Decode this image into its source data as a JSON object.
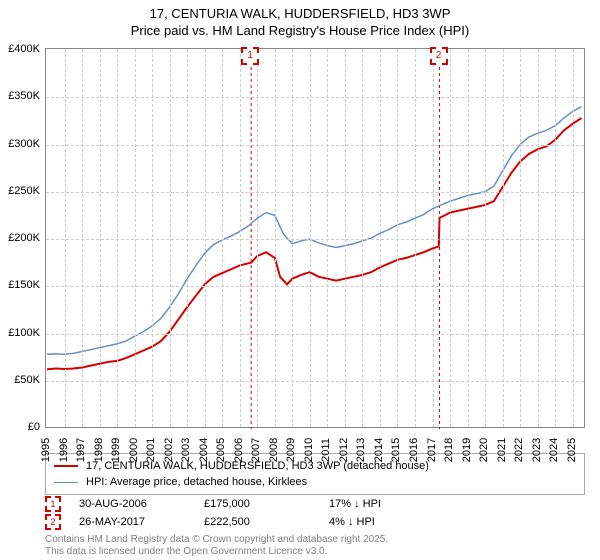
{
  "title_line1": "17, CENTURIA WALK, HUDDERSFIELD, HD3 3WP",
  "title_line2": "Price paid vs. HM Land Registry's House Price Index (HPI)",
  "chart": {
    "type": "line",
    "background_color": "#ffffff",
    "grid_color": "#cccccc",
    "border_color": "#888888",
    "x_domain": [
      1995,
      2025.7
    ],
    "y_domain": [
      0,
      400000
    ],
    "y_ticks": [
      0,
      50000,
      100000,
      150000,
      200000,
      250000,
      300000,
      350000,
      400000
    ],
    "y_tick_labels": [
      "£0",
      "£50K",
      "£100K",
      "£150K",
      "£200K",
      "£250K",
      "£300K",
      "£350K",
      "£400K"
    ],
    "x_ticks": [
      1995,
      1996,
      1997,
      1998,
      1999,
      2000,
      2001,
      2002,
      2003,
      2004,
      2005,
      2006,
      2007,
      2008,
      2009,
      2010,
      2011,
      2012,
      2013,
      2014,
      2015,
      2016,
      2017,
      2018,
      2019,
      2020,
      2021,
      2022,
      2023,
      2024,
      2025
    ],
    "series": [
      {
        "name": "price_paid",
        "label": "17, CENTURIA WALK, HUDDERSFIELD, HD3 3WP (detached house)",
        "color": "#d40000",
        "line_width": 2,
        "data": [
          [
            1995,
            62000
          ],
          [
            1995.5,
            63000
          ],
          [
            1996,
            62500
          ],
          [
            1996.5,
            63000
          ],
          [
            1997,
            64000
          ],
          [
            1997.5,
            66000
          ],
          [
            1998,
            68000
          ],
          [
            1998.5,
            70000
          ],
          [
            1999,
            71000
          ],
          [
            1999.5,
            74000
          ],
          [
            2000,
            78000
          ],
          [
            2000.5,
            82000
          ],
          [
            2001,
            86000
          ],
          [
            2001.5,
            92000
          ],
          [
            2002,
            102000
          ],
          [
            2002.5,
            115000
          ],
          [
            2003,
            128000
          ],
          [
            2003.5,
            140000
          ],
          [
            2004,
            152000
          ],
          [
            2004.5,
            160000
          ],
          [
            2005,
            164000
          ],
          [
            2005.5,
            168000
          ],
          [
            2006,
            172000
          ],
          [
            2006.65,
            175000
          ],
          [
            2007,
            182000
          ],
          [
            2007.5,
            186000
          ],
          [
            2008,
            180000
          ],
          [
            2008.3,
            160000
          ],
          [
            2008.7,
            152000
          ],
          [
            2009,
            158000
          ],
          [
            2009.5,
            162000
          ],
          [
            2010,
            165000
          ],
          [
            2010.5,
            160000
          ],
          [
            2011,
            158000
          ],
          [
            2011.5,
            156000
          ],
          [
            2012,
            158000
          ],
          [
            2012.5,
            160000
          ],
          [
            2013,
            162000
          ],
          [
            2013.5,
            165000
          ],
          [
            2014,
            170000
          ],
          [
            2014.5,
            174000
          ],
          [
            2015,
            178000
          ],
          [
            2015.5,
            180000
          ],
          [
            2016,
            183000
          ],
          [
            2016.5,
            186000
          ],
          [
            2017,
            190000
          ],
          [
            2017.35,
            192000
          ],
          [
            2017.4,
            222500
          ],
          [
            2017.7,
            225000
          ],
          [
            2018,
            228000
          ],
          [
            2018.5,
            230000
          ],
          [
            2019,
            232000
          ],
          [
            2019.5,
            234000
          ],
          [
            2020,
            236000
          ],
          [
            2020.5,
            240000
          ],
          [
            2021,
            255000
          ],
          [
            2021.5,
            270000
          ],
          [
            2022,
            282000
          ],
          [
            2022.5,
            290000
          ],
          [
            2023,
            295000
          ],
          [
            2023.5,
            298000
          ],
          [
            2024,
            305000
          ],
          [
            2024.5,
            315000
          ],
          [
            2025,
            322000
          ],
          [
            2025.5,
            328000
          ]
        ]
      },
      {
        "name": "hpi",
        "label": "HPI: Average price, detached house, Kirklees",
        "color": "#6a8fc4",
        "line_width": 1.5,
        "data": [
          [
            1995,
            78000
          ],
          [
            1995.5,
            78500
          ],
          [
            1996,
            78000
          ],
          [
            1996.5,
            79000
          ],
          [
            1997,
            81000
          ],
          [
            1997.5,
            83000
          ],
          [
            1998,
            85000
          ],
          [
            1998.5,
            87000
          ],
          [
            1999,
            89000
          ],
          [
            1999.5,
            92000
          ],
          [
            2000,
            97000
          ],
          [
            2000.5,
            102000
          ],
          [
            2001,
            108000
          ],
          [
            2001.5,
            116000
          ],
          [
            2002,
            128000
          ],
          [
            2002.5,
            142000
          ],
          [
            2003,
            158000
          ],
          [
            2003.5,
            172000
          ],
          [
            2004,
            185000
          ],
          [
            2004.5,
            194000
          ],
          [
            2005,
            199000
          ],
          [
            2005.5,
            203000
          ],
          [
            2006,
            208000
          ],
          [
            2006.5,
            214000
          ],
          [
            2007,
            222000
          ],
          [
            2007.5,
            228000
          ],
          [
            2008,
            225000
          ],
          [
            2008.5,
            205000
          ],
          [
            2009,
            195000
          ],
          [
            2009.5,
            198000
          ],
          [
            2010,
            200000
          ],
          [
            2010.5,
            196000
          ],
          [
            2011,
            193000
          ],
          [
            2011.5,
            191000
          ],
          [
            2012,
            193000
          ],
          [
            2012.5,
            195000
          ],
          [
            2013,
            198000
          ],
          [
            2013.5,
            201000
          ],
          [
            2014,
            206000
          ],
          [
            2014.5,
            210000
          ],
          [
            2015,
            215000
          ],
          [
            2015.5,
            218000
          ],
          [
            2016,
            222000
          ],
          [
            2016.5,
            226000
          ],
          [
            2017,
            232000
          ],
          [
            2017.5,
            236000
          ],
          [
            2018,
            240000
          ],
          [
            2018.5,
            243000
          ],
          [
            2019,
            246000
          ],
          [
            2019.5,
            248000
          ],
          [
            2020,
            250000
          ],
          [
            2020.5,
            256000
          ],
          [
            2021,
            272000
          ],
          [
            2021.5,
            288000
          ],
          [
            2022,
            300000
          ],
          [
            2022.5,
            308000
          ],
          [
            2023,
            312000
          ],
          [
            2023.5,
            315000
          ],
          [
            2024,
            320000
          ],
          [
            2024.5,
            328000
          ],
          [
            2025,
            335000
          ],
          [
            2025.5,
            340000
          ]
        ]
      }
    ],
    "markers": [
      {
        "id": "1",
        "x": 2006.65,
        "color": "#d40000"
      },
      {
        "id": "2",
        "x": 2017.4,
        "color": "#d40000"
      }
    ]
  },
  "legend": {
    "items": [
      {
        "color": "#d40000",
        "width": 2,
        "label": "17, CENTURIA WALK, HUDDERSFIELD, HD3 3WP (detached house)"
      },
      {
        "color": "#6a8fc4",
        "width": 1.5,
        "label": "HPI: Average price, detached house, Kirklees"
      }
    ]
  },
  "transactions": [
    {
      "id": "1",
      "color": "#d40000",
      "date": "30-AUG-2006",
      "price": "£175,000",
      "diff": "17% ↓ HPI"
    },
    {
      "id": "2",
      "color": "#d40000",
      "date": "26-MAY-2017",
      "price": "£222,500",
      "diff": "4% ↓ HPI"
    }
  ],
  "footer_line1": "Contains HM Land Registry data © Crown copyright and database right 2025.",
  "footer_line2": "This data is licensed under the Open Government Licence v3.0."
}
